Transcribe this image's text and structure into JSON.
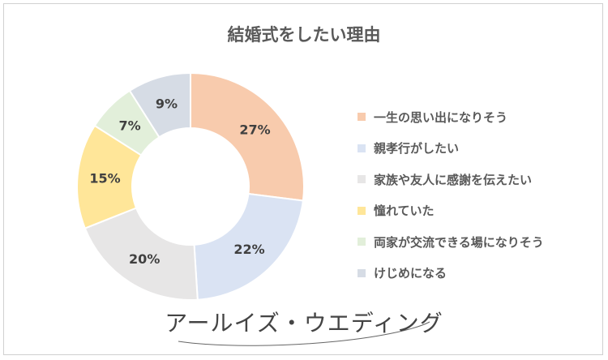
{
  "chart_data": {
    "type": "pie",
    "title": "結婚式をしたい理由",
    "categories": [
      "一生の思い出になりそう",
      "親孝行がしたい",
      "家族や友人に感謝を伝えたい",
      "憧れていた",
      "両家が交流できる場になりそう",
      "けじめになる"
    ],
    "values": [
      27,
      22,
      20,
      15,
      7,
      9
    ],
    "labels": [
      "27%",
      "22%",
      "20%",
      "15%",
      "7%",
      "9%"
    ],
    "colors": [
      "#F8CBAD",
      "#DAE3F3",
      "#E7E6E6",
      "#FFE699",
      "#E2EFDA",
      "#D6DCE5"
    ],
    "legend": "right"
  },
  "brand": {
    "name": "アールイズ・ウエディング"
  }
}
